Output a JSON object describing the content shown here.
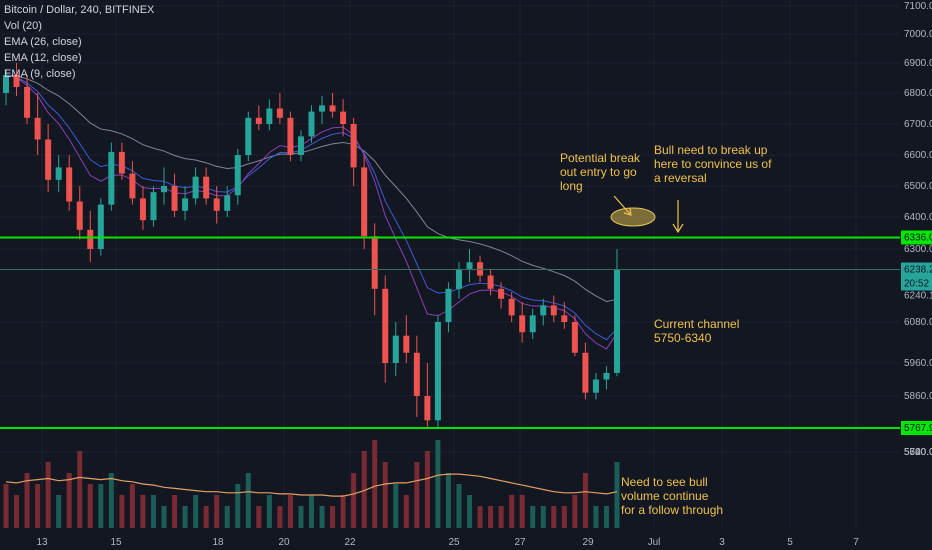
{
  "legend": {
    "title": "Bitcoin / Dollar, 240, BITFINEX",
    "indicators": [
      "Vol (20)",
      "EMA (26, close)",
      "EMA (12, close)",
      "EMA (9, close)"
    ]
  },
  "annotations": {
    "breakout": "Potential break\nout entry to go\nlong",
    "bull_break": "Bull need to break up\nhere to convince us of\na reversal",
    "channel": "Current channel\n5750-6340",
    "volume": "Need to see bull\nvolume continue\nfor a follow through"
  },
  "price_badges": {
    "upper_line": "6336.0",
    "last_price": "6238.2",
    "countdown": "20:52",
    "lower_line": "5767.9",
    "small": "6240.1"
  },
  "colors": {
    "background": "#131722",
    "up": "#26a69a",
    "down": "#ef5350",
    "channel_line": "#00e600",
    "annotation": "#f0c24b",
    "ema26": "#7e8794",
    "ema12": "#3c5bd8",
    "ema9": "#8b3fb8",
    "vol_ma": "#e3a062"
  },
  "chart_data": {
    "type": "candlestick",
    "title": "Bitcoin / Dollar, 240, BITFINEX",
    "y_ticks": [
      7100,
      7000,
      6900,
      6800,
      6700,
      6600,
      6500,
      6400,
      6300,
      6080,
      5960,
      5860,
      5700,
      5620,
      5540
    ],
    "x_ticks": [
      "13",
      "15",
      "18",
      "20",
      "22",
      "25",
      "27",
      "29",
      "Jul",
      "3",
      "5",
      "7"
    ],
    "horizontal_levels": [
      6336.0,
      5767.9
    ],
    "last_price": 6238.2,
    "candles": [
      [
        6800,
        6880,
        6760,
        6860
      ],
      [
        6860,
        6900,
        6790,
        6820
      ],
      [
        6820,
        6860,
        6700,
        6720
      ],
      [
        6720,
        6800,
        6600,
        6650
      ],
      [
        6650,
        6700,
        6480,
        6520
      ],
      [
        6520,
        6600,
        6480,
        6560
      ],
      [
        6560,
        6600,
        6420,
        6450
      ],
      [
        6450,
        6500,
        6330,
        6360
      ],
      [
        6360,
        6420,
        6260,
        6300
      ],
      [
        6300,
        6460,
        6280,
        6440
      ],
      [
        6440,
        6640,
        6420,
        6610
      ],
      [
        6610,
        6640,
        6520,
        6540
      ],
      [
        6540,
        6580,
        6440,
        6460
      ],
      [
        6460,
        6500,
        6360,
        6390
      ],
      [
        6390,
        6500,
        6370,
        6480
      ],
      [
        6480,
        6560,
        6440,
        6500
      ],
      [
        6500,
        6540,
        6400,
        6420
      ],
      [
        6420,
        6500,
        6390,
        6460
      ],
      [
        6460,
        6560,
        6440,
        6530
      ],
      [
        6530,
        6560,
        6440,
        6460
      ],
      [
        6460,
        6500,
        6380,
        6420
      ],
      [
        6420,
        6500,
        6400,
        6470
      ],
      [
        6470,
        6620,
        6440,
        6600
      ],
      [
        6600,
        6740,
        6580,
        6720
      ],
      [
        6720,
        6760,
        6680,
        6700
      ],
      [
        6700,
        6780,
        6680,
        6750
      ],
      [
        6750,
        6800,
        6700,
        6720
      ],
      [
        6720,
        6740,
        6580,
        6600
      ],
      [
        6600,
        6680,
        6580,
        6660
      ],
      [
        6660,
        6760,
        6640,
        6740
      ],
      [
        6740,
        6790,
        6700,
        6760
      ],
      [
        6760,
        6800,
        6720,
        6740
      ],
      [
        6740,
        6780,
        6660,
        6700
      ],
      [
        6700,
        6720,
        6500,
        6560
      ],
      [
        6560,
        6600,
        6300,
        6340
      ],
      [
        6340,
        6380,
        6100,
        6180
      ],
      [
        6180,
        6220,
        5900,
        5960
      ],
      [
        5960,
        6080,
        5920,
        6040
      ],
      [
        6040,
        6100,
        5960,
        5990
      ],
      [
        5990,
        6040,
        5800,
        5860
      ],
      [
        5860,
        5960,
        5770,
        5790
      ],
      [
        5790,
        6100,
        5770,
        6080
      ],
      [
        6080,
        6200,
        6050,
        6180
      ],
      [
        6180,
        6260,
        6150,
        6240
      ],
      [
        6240,
        6300,
        6200,
        6260
      ],
      [
        6260,
        6280,
        6200,
        6220
      ],
      [
        6220,
        6240,
        6160,
        6180
      ],
      [
        6180,
        6200,
        6120,
        6150
      ],
      [
        6150,
        6170,
        6080,
        6100
      ],
      [
        6100,
        6140,
        6020,
        6050
      ],
      [
        6050,
        6120,
        6030,
        6100
      ],
      [
        6100,
        6150,
        6070,
        6130
      ],
      [
        6130,
        6160,
        6080,
        6100
      ],
      [
        6100,
        6140,
        6060,
        6080
      ],
      [
        6080,
        6100,
        5980,
        5990
      ],
      [
        5990,
        6020,
        5850,
        5870
      ],
      [
        5870,
        5930,
        5850,
        5910
      ],
      [
        5910,
        5950,
        5880,
        5930
      ],
      [
        5930,
        6300,
        5920,
        6238.2
      ]
    ],
    "volume": [
      [
        4,
        "down"
      ],
      [
        3,
        "down"
      ],
      [
        5,
        "down"
      ],
      [
        4,
        "down"
      ],
      [
        6,
        "down"
      ],
      [
        3,
        "up"
      ],
      [
        5,
        "down"
      ],
      [
        7,
        "down"
      ],
      [
        4,
        "down"
      ],
      [
        4,
        "up"
      ],
      [
        5,
        "up"
      ],
      [
        3,
        "down"
      ],
      [
        4,
        "down"
      ],
      [
        3,
        "down"
      ],
      [
        3,
        "up"
      ],
      [
        2,
        "up"
      ],
      [
        3,
        "down"
      ],
      [
        2,
        "up"
      ],
      [
        3,
        "up"
      ],
      [
        2,
        "down"
      ],
      [
        3,
        "down"
      ],
      [
        2,
        "up"
      ],
      [
        4,
        "up"
      ],
      [
        5,
        "up"
      ],
      [
        2,
        "down"
      ],
      [
        3,
        "up"
      ],
      [
        2,
        "down"
      ],
      [
        3,
        "down"
      ],
      [
        2,
        "up"
      ],
      [
        3,
        "up"
      ],
      [
        2,
        "up"
      ],
      [
        2,
        "down"
      ],
      [
        3,
        "down"
      ],
      [
        5,
        "down"
      ],
      [
        7,
        "down"
      ],
      [
        8,
        "down"
      ],
      [
        6,
        "down"
      ],
      [
        4,
        "up"
      ],
      [
        3,
        "down"
      ],
      [
        6,
        "down"
      ],
      [
        7,
        "down"
      ],
      [
        8,
        "up"
      ],
      [
        5,
        "up"
      ],
      [
        4,
        "up"
      ],
      [
        3,
        "up"
      ],
      [
        2,
        "down"
      ],
      [
        2,
        "down"
      ],
      [
        2,
        "down"
      ],
      [
        3,
        "down"
      ],
      [
        3,
        "down"
      ],
      [
        2,
        "up"
      ],
      [
        2,
        "up"
      ],
      [
        2,
        "down"
      ],
      [
        2,
        "down"
      ],
      [
        3,
        "down"
      ],
      [
        5,
        "down"
      ],
      [
        2,
        "up"
      ],
      [
        2,
        "up"
      ],
      [
        6,
        "up"
      ]
    ],
    "volume_ma": [
      4.2,
      4.1,
      4.3,
      4.4,
      4.5,
      4.3,
      4.4,
      4.6,
      4.5,
      4.4,
      4.5,
      4.3,
      4.2,
      4.0,
      3.9,
      3.7,
      3.6,
      3.5,
      3.4,
      3.3,
      3.3,
      3.2,
      3.2,
      3.3,
      3.2,
      3.2,
      3.1,
      3.1,
      3.0,
      3.0,
      3.0,
      2.9,
      2.9,
      3.1,
      3.4,
      3.8,
      4.0,
      4.1,
      4.1,
      4.3,
      4.5,
      4.8,
      4.9,
      4.9,
      4.8,
      4.7,
      4.5,
      4.3,
      4.1,
      3.9,
      3.7,
      3.5,
      3.3,
      3.2,
      3.2,
      3.3,
      3.2,
      3.1,
      3.3
    ]
  }
}
